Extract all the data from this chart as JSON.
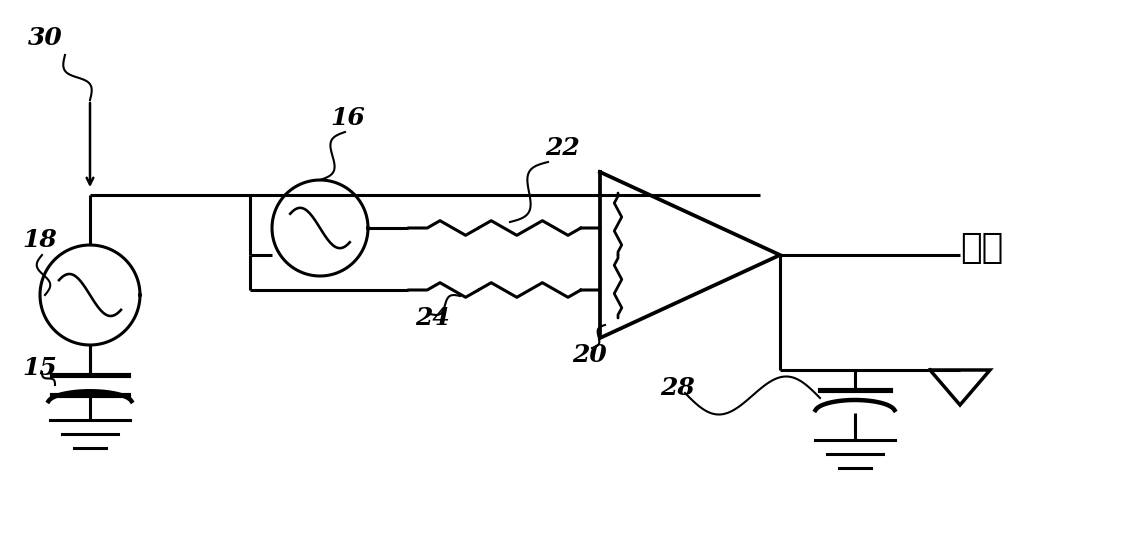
{
  "bg_color": "#ffffff",
  "output_str": "输出",
  "lw": 2.2,
  "figsize": [
    11.26,
    5.44
  ],
  "dpi": 100
}
